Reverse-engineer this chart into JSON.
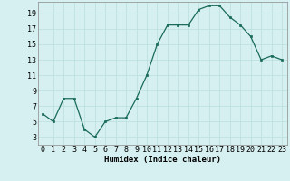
{
  "x": [
    0,
    1,
    2,
    3,
    4,
    5,
    6,
    7,
    8,
    9,
    10,
    11,
    12,
    13,
    14,
    15,
    16,
    17,
    18,
    19,
    20,
    21,
    22,
    23
  ],
  "y": [
    6,
    5,
    8,
    8,
    4,
    3,
    5,
    5.5,
    5.5,
    8,
    11,
    15,
    17.5,
    17.5,
    17.5,
    19.5,
    20,
    20,
    18.5,
    17.5,
    16,
    13,
    13.5,
    13
  ],
  "line_color": "#1a6b5a",
  "marker_color": "#1a6b5a",
  "bg_color": "#d6eff0",
  "grid_color": "#b8dede",
  "xlabel": "Humidex (Indice chaleur)",
  "xlim": [
    -0.5,
    23.5
  ],
  "ylim": [
    2,
    20.5
  ],
  "yticks": [
    3,
    5,
    7,
    9,
    11,
    13,
    15,
    17,
    19
  ],
  "xticks": [
    0,
    1,
    2,
    3,
    4,
    5,
    6,
    7,
    8,
    9,
    10,
    11,
    12,
    13,
    14,
    15,
    16,
    17,
    18,
    19,
    20,
    21,
    22,
    23
  ],
  "xlabel_fontsize": 6.5,
  "tick_fontsize": 6.0
}
